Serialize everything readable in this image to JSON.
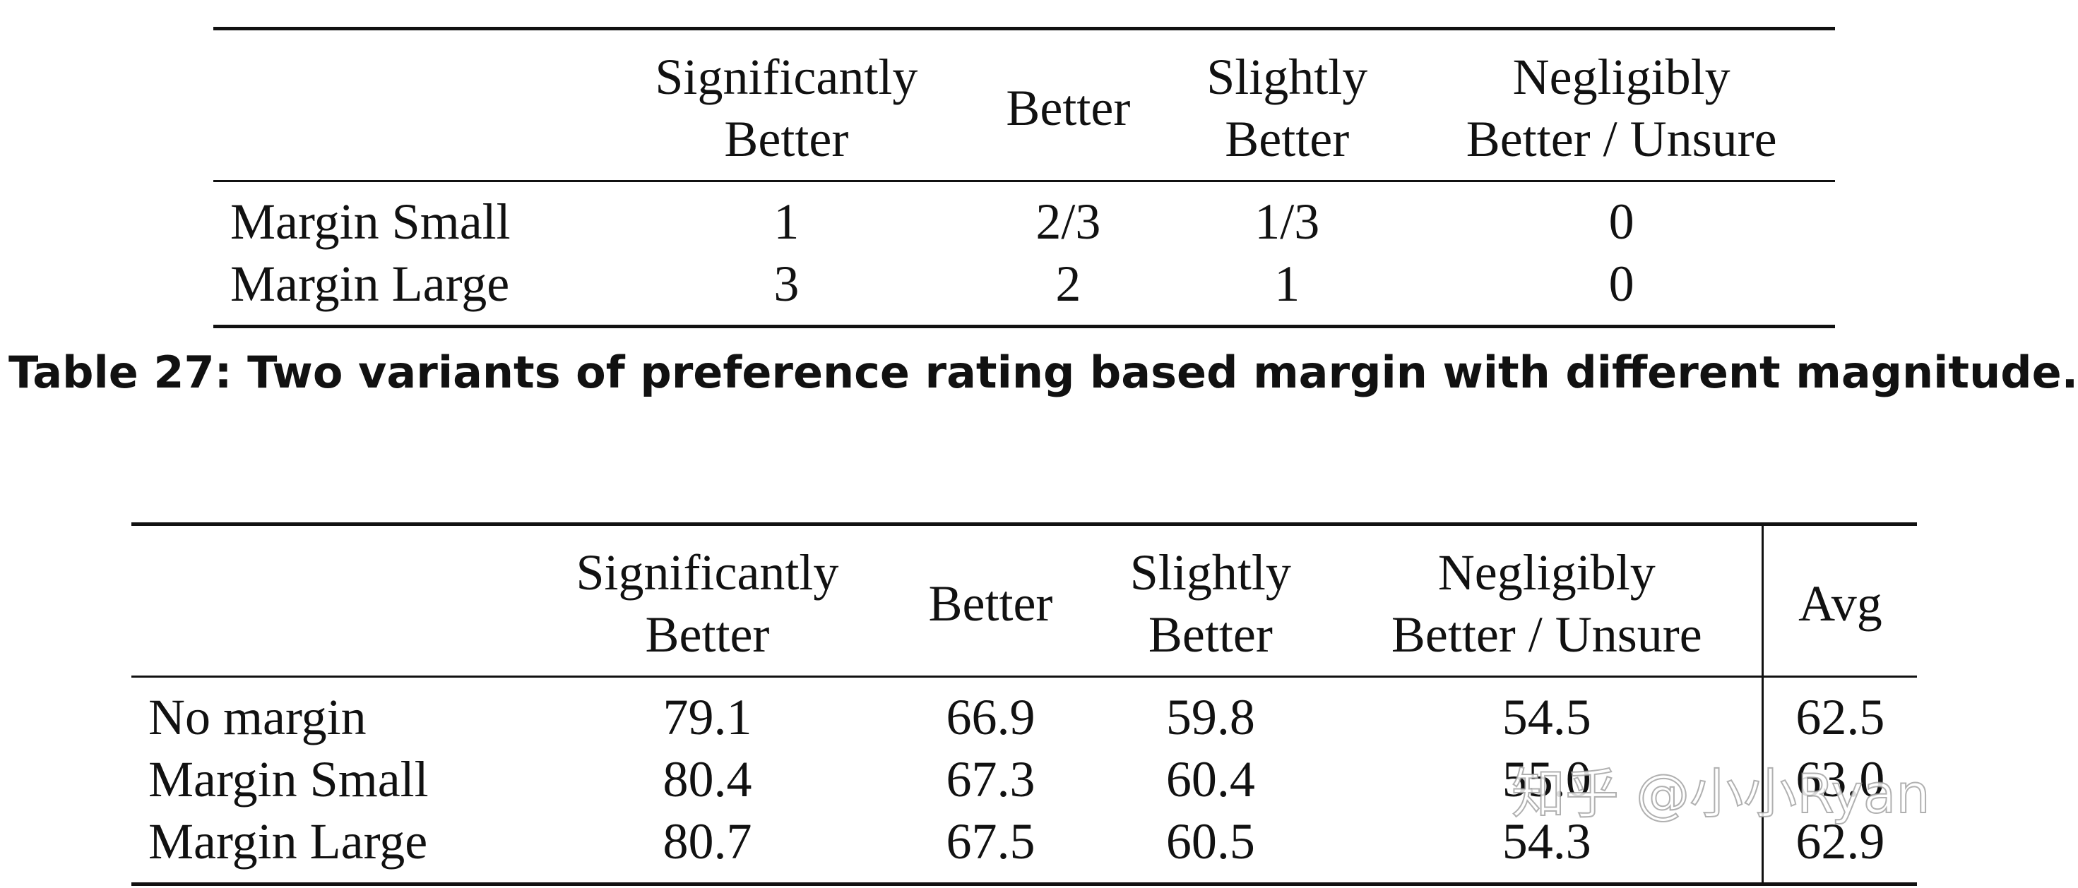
{
  "table27": {
    "columns": [
      [
        "Significantly",
        "Better"
      ],
      [
        "Better"
      ],
      [
        "Slightly",
        "Better"
      ],
      [
        "Negligibly",
        "Better / Unsure"
      ]
    ],
    "rows": [
      {
        "label": "Margin Small",
        "values": [
          "1",
          "2/3",
          "1/3",
          "0"
        ]
      },
      {
        "label": "Margin Large",
        "values": [
          "3",
          "2",
          "1",
          "0"
        ]
      }
    ],
    "caption": "Table 27: Two variants of preference rating based margin with different magnitude."
  },
  "table28": {
    "columns": [
      [
        "Significantly",
        "Better"
      ],
      [
        "Better"
      ],
      [
        "Slightly",
        "Better"
      ],
      [
        "Negligibly",
        "Better / Unsure"
      ],
      [
        "Avg"
      ]
    ],
    "rows": [
      {
        "label": "No margin",
        "values": [
          "79.1",
          "66.9",
          "59.8",
          "54.5",
          "62.5"
        ],
        "bold": [
          false,
          false,
          false,
          false,
          false
        ]
      },
      {
        "label": "Margin Small",
        "values": [
          "80.4",
          "67.3",
          "60.4",
          "55.0",
          "63.0"
        ],
        "bold": [
          false,
          false,
          false,
          true,
          true
        ]
      },
      {
        "label": "Margin Large",
        "values": [
          "80.7",
          "67.5",
          "60.5",
          "54.3",
          "62.9"
        ],
        "bold": [
          true,
          true,
          true,
          false,
          false
        ]
      }
    ]
  },
  "watermark": "知乎 @小小Ryan"
}
